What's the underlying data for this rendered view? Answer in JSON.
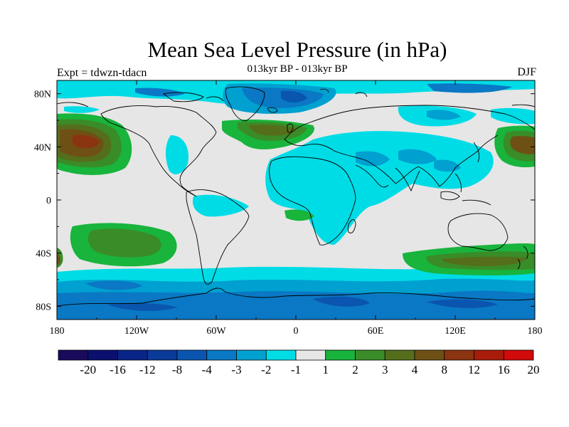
{
  "title": "Mean Sea Level Pressure (in hPa)",
  "subtitle": "013kyr BP - 013kyr BP",
  "left_label": "Expt = tdwzn-tdacn",
  "right_label": "DJF",
  "colors": {
    "background": "#ffffff",
    "map_neutral": "#e6e6e6",
    "coast": "#000000"
  },
  "map": {
    "projection": "cylindrical equidistant",
    "lon_range": [
      -180,
      180
    ],
    "lat_range": [
      -90,
      90
    ],
    "lat_ticks": [
      "80N",
      "40N",
      "0",
      "40S",
      "80S"
    ],
    "lon_ticks": [
      "180",
      "120W",
      "60W",
      "0",
      "60E",
      "120E",
      "180"
    ]
  },
  "colorbar": {
    "labels": [
      "-20",
      "-16",
      "-12",
      "-8",
      "-4",
      "-3",
      "-2",
      "-1",
      "1",
      "2",
      "3",
      "4",
      "8",
      "12",
      "16",
      "20"
    ],
    "colors": [
      "#1a0a5c",
      "#0a1070",
      "#0a2588",
      "#0a3a9a",
      "#0a55b0",
      "#0a78c4",
      "#00a0d0",
      "#00dce6",
      "#e6e6e6",
      "#18b43c",
      "#3a8c28",
      "#556e1c",
      "#6e5014",
      "#8a3410",
      "#a81c0a",
      "#d20a0a"
    ]
  }
}
